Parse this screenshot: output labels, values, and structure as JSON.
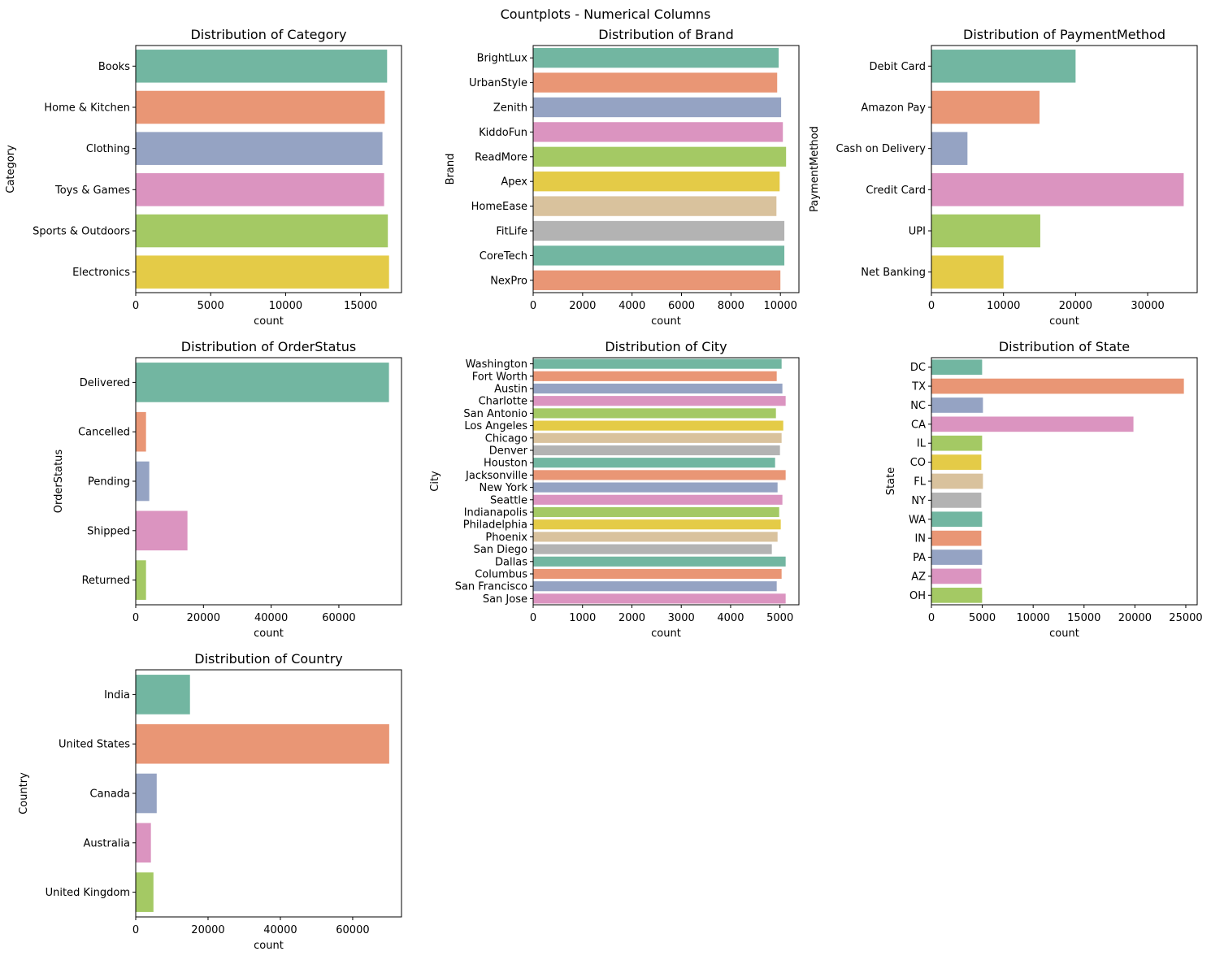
{
  "suptitle": "Countplots - Numerical Columns",
  "palette": [
    "#72b6a1",
    "#e99675",
    "#95a3c3",
    "#db94c0",
    "#a4c964",
    "#e4cb47",
    "#d9c29d",
    "#b3b3b3"
  ],
  "chart_data": [
    {
      "type": "bar",
      "orientation": "horizontal",
      "title": "Distribution of Category",
      "xlabel": "count",
      "ylabel": "Category",
      "categories": [
        "Books",
        "Home & Kitchen",
        "Clothing",
        "Toys & Games",
        "Sports & Outdoors",
        "Electronics"
      ],
      "values": [
        16770,
        16610,
        16460,
        16570,
        16820,
        16900
      ],
      "xlim": [
        0,
        17730
      ],
      "xticks": [
        0,
        5000,
        10000,
        15000
      ],
      "grid": false
    },
    {
      "type": "bar",
      "orientation": "horizontal",
      "title": "Distribution of Brand",
      "xlabel": "count",
      "ylabel": "Brand",
      "categories": [
        "BrightLux",
        "UrbanStyle",
        "Zenith",
        "KiddoFun",
        "ReadMore",
        "Apex",
        "HomeEase",
        "FitLife",
        "CoreTech",
        "NexPro"
      ],
      "values": [
        9930,
        9870,
        10030,
        10100,
        10230,
        9970,
        9840,
        10160,
        10160,
        10000
      ],
      "xlim": [
        0,
        10750
      ],
      "xticks": [
        0,
        2000,
        4000,
        6000,
        8000,
        10000
      ],
      "grid": false
    },
    {
      "type": "bar",
      "orientation": "horizontal",
      "title": "Distribution of PaymentMethod",
      "xlabel": "count",
      "ylabel": "PaymentMethod",
      "categories": [
        "Debit Card",
        "Amazon Pay",
        "Cash on Delivery",
        "Credit Card",
        "UPI",
        "Net Banking"
      ],
      "values": [
        20000,
        15000,
        5000,
        35000,
        15100,
        10000
      ],
      "xlim": [
        0,
        36870
      ],
      "xticks": [
        0,
        10000,
        20000,
        30000
      ],
      "grid": false
    },
    {
      "type": "bar",
      "orientation": "horizontal",
      "title": "Distribution of OrderStatus",
      "xlabel": "count",
      "ylabel": "OrderStatus",
      "categories": [
        "Delivered",
        "Cancelled",
        "Pending",
        "Shipped",
        "Returned"
      ],
      "values": [
        74800,
        3040,
        4000,
        15280,
        3040
      ],
      "xlim": [
        0,
        78500
      ],
      "xticks": [
        0,
        20000,
        40000,
        60000
      ],
      "grid": false
    },
    {
      "type": "bar",
      "orientation": "horizontal",
      "title": "Distribution of City",
      "xlabel": "count",
      "ylabel": "City",
      "categories": [
        "Washington",
        "Fort Worth",
        "Austin",
        "Charlotte",
        "San Antonio",
        "Los Angeles",
        "Chicago",
        "Denver",
        "Houston",
        "Jacksonville",
        "New York",
        "Seattle",
        "Indianapolis",
        "Philadelphia",
        "Phoenix",
        "San Diego",
        "Dallas",
        "Columbus",
        "San Francisco",
        "San Jose"
      ],
      "values": [
        5033,
        4934,
        5049,
        5115,
        4918,
        5066,
        5033,
        5000,
        4901,
        5115,
        4951,
        5049,
        4984,
        5016,
        4951,
        4835,
        5115,
        5033,
        4934,
        5115
      ],
      "xlim": [
        0,
        5384
      ],
      "xticks": [
        0,
        1000,
        2000,
        3000,
        4000,
        5000
      ],
      "grid": false
    },
    {
      "type": "bar",
      "orientation": "horizontal",
      "title": "Distribution of State",
      "xlabel": "count",
      "ylabel": "State",
      "categories": [
        "DC",
        "TX",
        "NC",
        "CA",
        "IL",
        "CO",
        "FL",
        "NY",
        "WA",
        "IN",
        "PA",
        "AZ",
        "OH"
      ],
      "values": [
        4984,
        24813,
        5064,
        19856,
        4984,
        4904,
        5064,
        4904,
        4984,
        4904,
        4984,
        4904,
        4984
      ],
      "xlim": [
        0,
        26120
      ],
      "xticks": [
        0,
        5000,
        10000,
        15000,
        20000,
        25000
      ],
      "grid": false
    },
    {
      "type": "bar",
      "orientation": "horizontal",
      "title": "Distribution of Country",
      "xlabel": "count",
      "ylabel": "Country",
      "categories": [
        "India",
        "United States",
        "Canada",
        "Australia",
        "United Kingdom"
      ],
      "values": [
        15000,
        70100,
        5800,
        4200,
        4900
      ],
      "xlim": [
        0,
        73500
      ],
      "xticks": [
        0,
        20000,
        40000,
        60000
      ],
      "grid": false
    }
  ]
}
